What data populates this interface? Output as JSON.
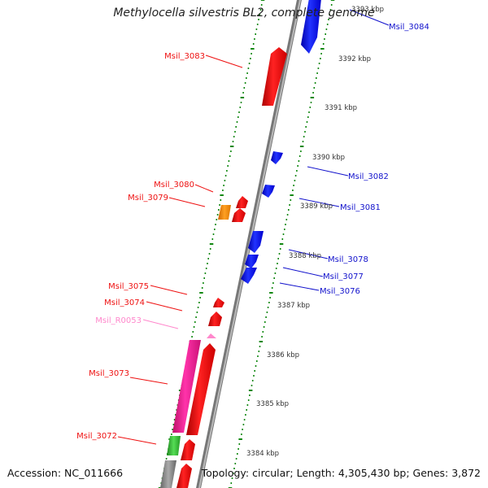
{
  "title": "Methylocella silvestris BL2, complete genome",
  "footer": {
    "accession": "Accession: NC_011666",
    "summary": "Topology: circular; Length: 4,305,430 bp; Genes: 3,872"
  },
  "colors": {
    "forward_gene": "#ee1111",
    "reverse_gene": "#1111ee",
    "pink_gene": "#ee2288",
    "rna_gene": "#ff88cc",
    "orange_gene": "#ff8800",
    "green_gene": "#33bb33",
    "backbone": "#888888",
    "tick": "#118811"
  },
  "ruler_labels": [
    "3393 kbp",
    "3392 kbp",
    "3391 kbp",
    "3390 kbp",
    "3389 kbp",
    "3388 kbp",
    "3387 kbp",
    "3386 kbp",
    "3385 kbp",
    "3384 kbp"
  ],
  "left_genes": [
    {
      "id": "Msil_3083",
      "color": "red"
    },
    {
      "id": "Msil_3080",
      "color": "red"
    },
    {
      "id": "Msil_3079",
      "color": "red"
    },
    {
      "id": "Msil_3075",
      "color": "red"
    },
    {
      "id": "Msil_3074",
      "color": "red"
    },
    {
      "id": "Msil_R0053",
      "color": "pink"
    },
    {
      "id": "Msil_3073",
      "color": "red"
    },
    {
      "id": "Msil_3072",
      "color": "red"
    }
  ],
  "right_genes": [
    {
      "id": "Msil_3084",
      "color": "blue"
    },
    {
      "id": "Msil_3082",
      "color": "blue"
    },
    {
      "id": "Msil_3081",
      "color": "blue"
    },
    {
      "id": "Msil_3078",
      "color": "blue"
    },
    {
      "id": "Msil_3077",
      "color": "blue"
    },
    {
      "id": "Msil_3076",
      "color": "blue"
    }
  ]
}
